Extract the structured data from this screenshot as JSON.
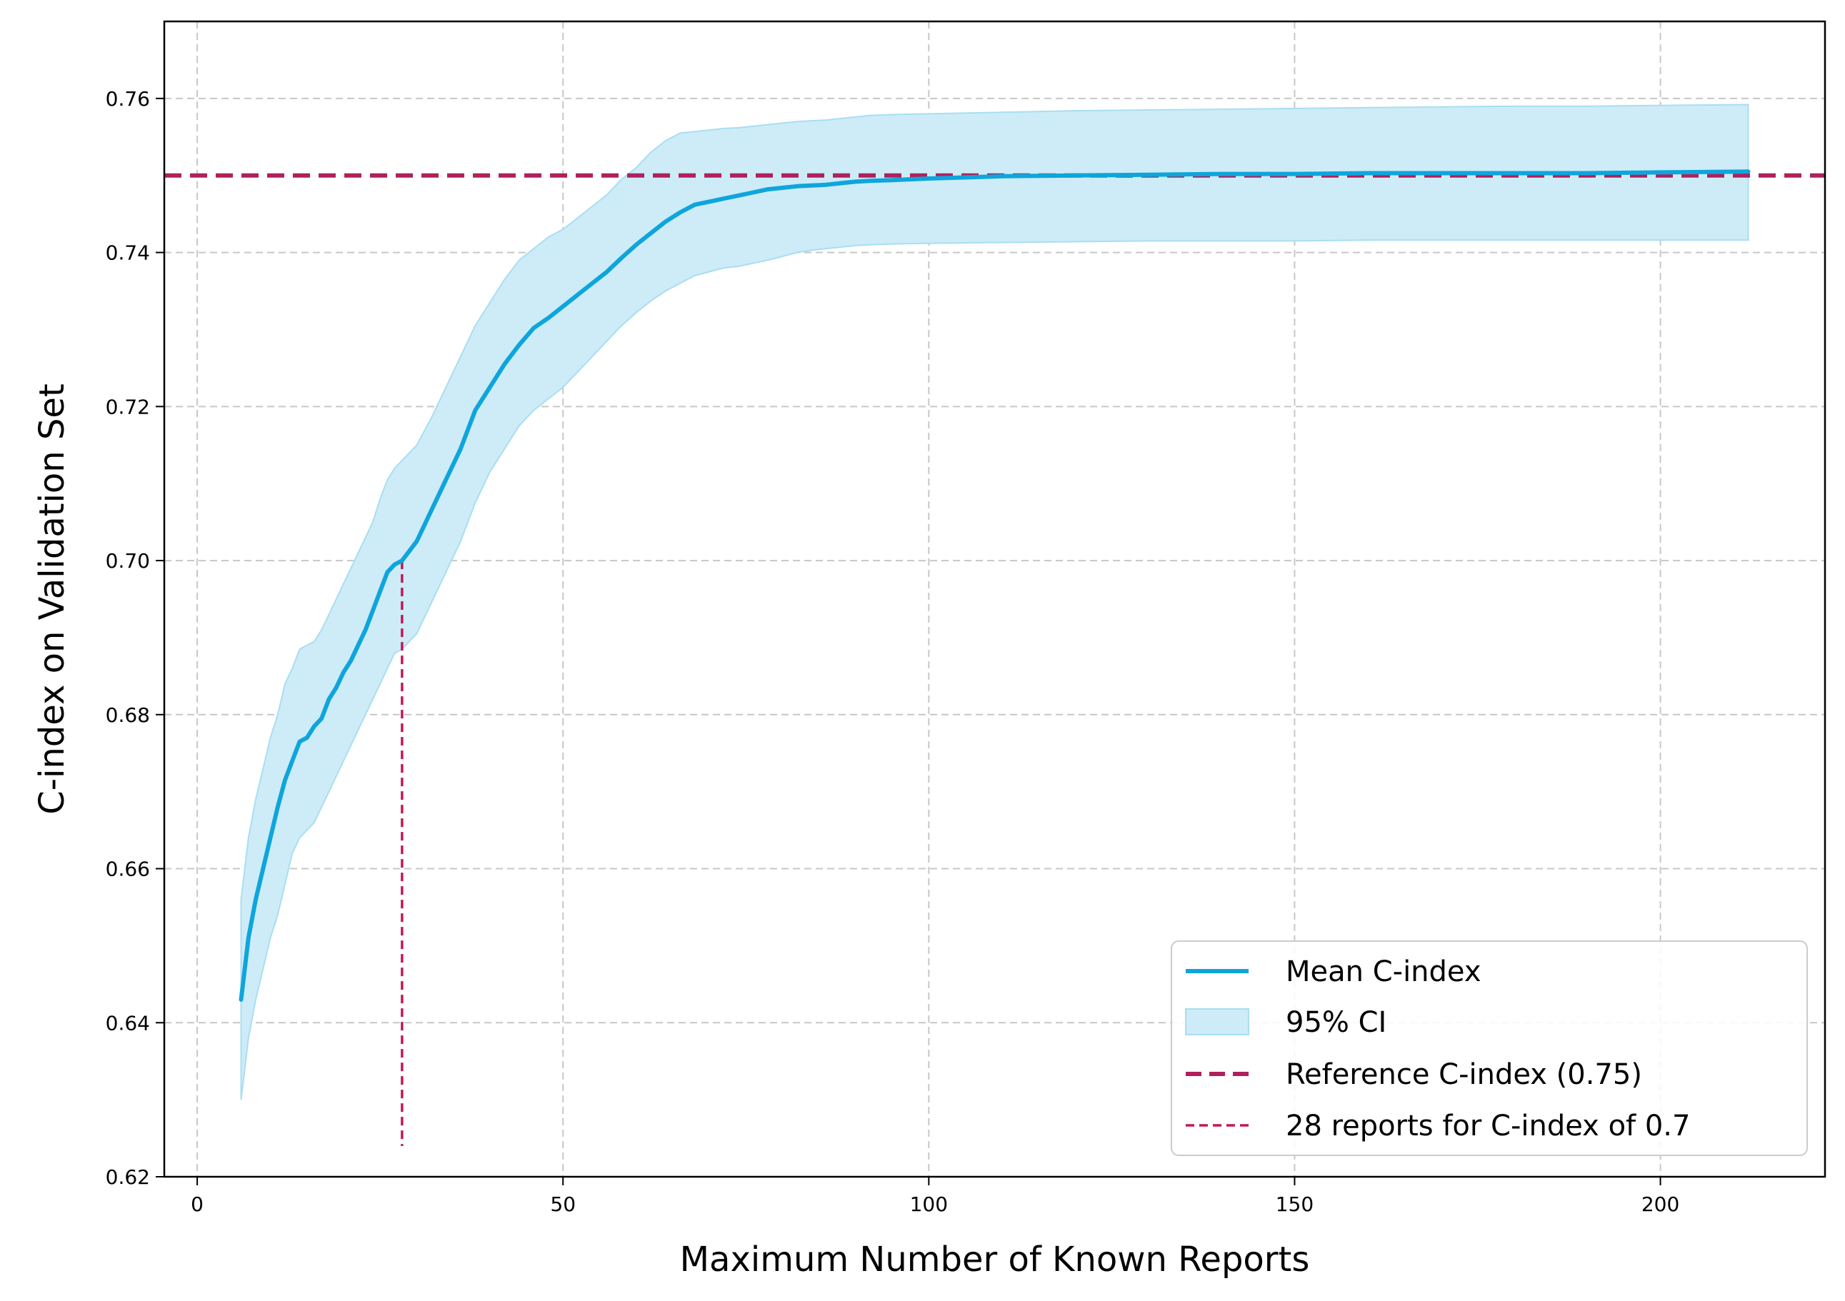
{
  "chart_data": {
    "type": "line",
    "xlabel": "Maximum Number of Known Reports",
    "ylabel": "C-index on Validation Set",
    "xlim": [
      -4.5,
      222.5
    ],
    "ylim": [
      0.62,
      0.77
    ],
    "xticks": [
      0,
      50,
      100,
      150,
      200
    ],
    "yticks": [
      0.62,
      0.64,
      0.66,
      0.68,
      0.7,
      0.72,
      0.74,
      0.76
    ],
    "ytick_labels": [
      "0.62",
      "0.64",
      "0.66",
      "0.68",
      "0.70",
      "0.72",
      "0.74",
      "0.76"
    ],
    "grid": true,
    "legend_position": "lower right",
    "legend": [
      {
        "label": "Mean C-index",
        "kind": "line",
        "color": "#0ea5dc"
      },
      {
        "label": "95% CI",
        "kind": "patch",
        "color": "#cdecf7"
      },
      {
        "label": "Reference C-index (0.75)",
        "kind": "dashed-thick",
        "color": "#b0205c"
      },
      {
        "label": "28 reports for C-index of 0.7",
        "kind": "dashed-thin",
        "color": "#c2185b"
      }
    ],
    "series": [
      {
        "name": "Mean C-index",
        "color": "#0ea5dc",
        "x": [
          6,
          7,
          8,
          9,
          10,
          11,
          12,
          13,
          14,
          15,
          16,
          17,
          18,
          19,
          20,
          21,
          22,
          23,
          24,
          25,
          26,
          27,
          28,
          30,
          32,
          34,
          36,
          38,
          40,
          42,
          44,
          46,
          48,
          50,
          52,
          54,
          56,
          58,
          60,
          62,
          64,
          66,
          68,
          70,
          72,
          74,
          76,
          78,
          80,
          82,
          84,
          86,
          88,
          90,
          92,
          95,
          100,
          110,
          120,
          130,
          140,
          150,
          160,
          170,
          180,
          190,
          200,
          212
        ],
        "y": [
          0.643,
          0.651,
          0.656,
          0.66,
          0.664,
          0.668,
          0.6715,
          0.674,
          0.6765,
          0.677,
          0.6785,
          0.6795,
          0.682,
          0.6835,
          0.6855,
          0.687,
          0.689,
          0.691,
          0.6935,
          0.696,
          0.6985,
          0.6995,
          0.7,
          0.7025,
          0.7065,
          0.7105,
          0.7145,
          0.7195,
          0.7225,
          0.7255,
          0.728,
          0.7302,
          0.7315,
          0.733,
          0.7345,
          0.736,
          0.7375,
          0.7393,
          0.741,
          0.7425,
          0.744,
          0.7452,
          0.7462,
          0.7466,
          0.747,
          0.7474,
          0.7478,
          0.7482,
          0.7484,
          0.7486,
          0.7487,
          0.7488,
          0.749,
          0.7492,
          0.7493,
          0.7494,
          0.7496,
          0.7499,
          0.75,
          0.7501,
          0.7502,
          0.7502,
          0.7503,
          0.7503,
          0.7503,
          0.7503,
          0.7504,
          0.7505
        ]
      },
      {
        "name": "95% CI",
        "color": "#cdecf7",
        "x": [
          6,
          7,
          8,
          9,
          10,
          11,
          12,
          13,
          14,
          15,
          16,
          17,
          18,
          19,
          20,
          21,
          22,
          23,
          24,
          25,
          26,
          27,
          28,
          30,
          32,
          34,
          36,
          38,
          40,
          42,
          44,
          46,
          48,
          50,
          52,
          54,
          56,
          58,
          60,
          62,
          64,
          66,
          68,
          70,
          72,
          74,
          76,
          78,
          80,
          82,
          84,
          86,
          88,
          90,
          92,
          95,
          100,
          110,
          120,
          130,
          140,
          150,
          160,
          170,
          180,
          190,
          200,
          212
        ],
        "lower": [
          0.63,
          0.638,
          0.643,
          0.647,
          0.651,
          0.654,
          0.658,
          0.662,
          0.664,
          0.665,
          0.666,
          0.668,
          0.67,
          0.672,
          0.674,
          0.676,
          0.678,
          0.68,
          0.682,
          0.684,
          0.686,
          0.688,
          0.6885,
          0.6905,
          0.6945,
          0.6985,
          0.7025,
          0.7075,
          0.7115,
          0.7145,
          0.7175,
          0.7195,
          0.721,
          0.7225,
          0.7245,
          0.7265,
          0.7285,
          0.7305,
          0.7322,
          0.7337,
          0.735,
          0.736,
          0.737,
          0.7375,
          0.738,
          0.7382,
          0.7386,
          0.739,
          0.7395,
          0.74,
          0.7403,
          0.7405,
          0.7407,
          0.7409,
          0.741,
          0.7411,
          0.7412,
          0.7413,
          0.7414,
          0.7415,
          0.7415,
          0.7415,
          0.7416,
          0.7416,
          0.7416,
          0.7416,
          0.7416,
          0.7416
        ],
        "upper": [
          0.656,
          0.664,
          0.669,
          0.673,
          0.677,
          0.68,
          0.684,
          0.686,
          0.6885,
          0.689,
          0.6895,
          0.691,
          0.693,
          0.695,
          0.697,
          0.699,
          0.701,
          0.703,
          0.705,
          0.708,
          0.7105,
          0.712,
          0.713,
          0.715,
          0.7185,
          0.7225,
          0.7265,
          0.7305,
          0.7335,
          0.7365,
          0.739,
          0.7405,
          0.742,
          0.743,
          0.7445,
          0.746,
          0.7475,
          0.7495,
          0.751,
          0.753,
          0.7545,
          0.7555,
          0.7557,
          0.7559,
          0.7561,
          0.7562,
          0.7564,
          0.7566,
          0.7568,
          0.757,
          0.7571,
          0.7572,
          0.7574,
          0.7576,
          0.7578,
          0.7579,
          0.758,
          0.7582,
          0.7584,
          0.7585,
          0.7586,
          0.7587,
          0.7588,
          0.7589,
          0.759,
          0.759,
          0.7591,
          0.7592
        ]
      }
    ],
    "reference_line": {
      "label": "Reference C-index (0.75)",
      "y": 0.75,
      "color": "#b0205c"
    },
    "threshold_marker": {
      "label": "28 reports for C-index of 0.7",
      "x": 28,
      "y": 0.7,
      "color": "#c2185b"
    }
  }
}
